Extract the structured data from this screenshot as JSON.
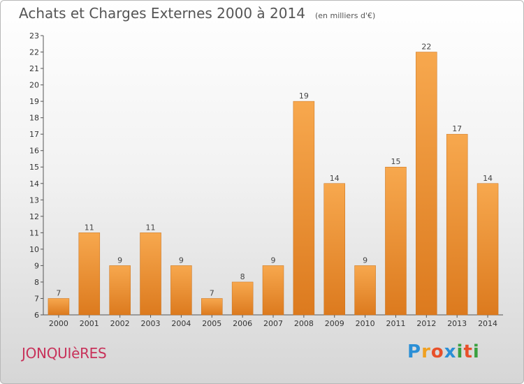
{
  "header": {
    "title": "Achats et Charges Externes 2000 à 2014",
    "subtitle": "(en milliers d'€)"
  },
  "footer": {
    "commune": "JONQUIèRES",
    "logo_letters": [
      "P",
      "r",
      "o",
      "x",
      "i",
      "t",
      "i"
    ],
    "logo_colors": [
      "#2b8fd6",
      "#f0a020",
      "#e8502a",
      "#2b8fd6",
      "#3aa040",
      "#e8502a",
      "#3aa040"
    ]
  },
  "chart_data": {
    "type": "bar",
    "title": "Achats et Charges Externes 2000 à 2014",
    "subtitle": "(en milliers d'€)",
    "categories": [
      "2000",
      "2001",
      "2002",
      "2003",
      "2004",
      "2005",
      "2006",
      "2007",
      "2008",
      "2009",
      "2010",
      "2011",
      "2012",
      "2013",
      "2014"
    ],
    "values": [
      7,
      11,
      9,
      11,
      9,
      7,
      8,
      9,
      19,
      14,
      9,
      15,
      22,
      17,
      14
    ],
    "ylim": [
      6,
      23
    ],
    "yticks": [
      6,
      7,
      8,
      9,
      10,
      11,
      12,
      13,
      14,
      15,
      16,
      17,
      18,
      19,
      20,
      21,
      22,
      23
    ],
    "grid": false,
    "legend": "none",
    "bar_color": "#f0a040",
    "xlabel": "",
    "ylabel": ""
  }
}
